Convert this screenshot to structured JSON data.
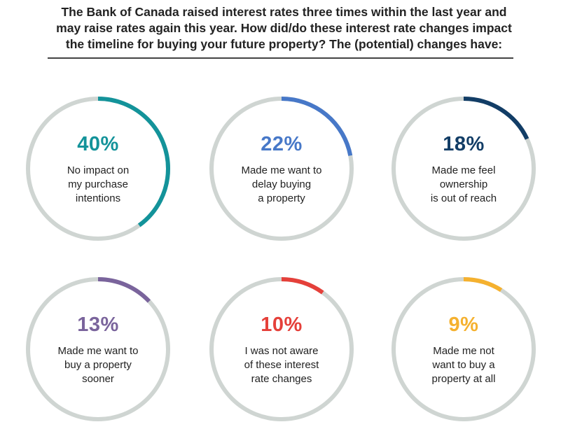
{
  "title_lines": [
    "The Bank of Canada raised interest rates three times within the last year and",
    "may raise rates again this year. How did/do these interest rate changes impact",
    "the timeline for buying your future property? The (potential) changes have:"
  ],
  "colors": {
    "track": "#cfd5d2",
    "teal": "#13939a",
    "blue": "#4778c8",
    "navy": "#123d66",
    "purple": "#7a649c",
    "red": "#e5403a",
    "yellow": "#f5b12f"
  },
  "chart_data": {
    "type": "donut",
    "items": [
      {
        "value": 40,
        "pct_label": "40%",
        "label_lines": [
          "No impact on",
          "my purchase",
          "intentions"
        ],
        "color": "#13939a"
      },
      {
        "value": 22,
        "pct_label": "22%",
        "label_lines": [
          "Made me want to",
          "delay buying",
          "a property"
        ],
        "color": "#4778c8"
      },
      {
        "value": 18,
        "pct_label": "18%",
        "label_lines": [
          "Made me feel",
          "ownership",
          "is out of reach"
        ],
        "color": "#123d66"
      },
      {
        "value": 13,
        "pct_label": "13%",
        "label_lines": [
          "Made me want to",
          "buy a property",
          "sooner"
        ],
        "color": "#7a649c"
      },
      {
        "value": 10,
        "pct_label": "10%",
        "label_lines": [
          "I was not aware",
          "of these interest",
          "rate changes"
        ],
        "color": "#e5403a"
      },
      {
        "value": 9,
        "pct_label": "9%",
        "label_lines": [
          "Made me not",
          "want to buy a",
          "property at all"
        ],
        "color": "#f5b12f"
      }
    ]
  }
}
